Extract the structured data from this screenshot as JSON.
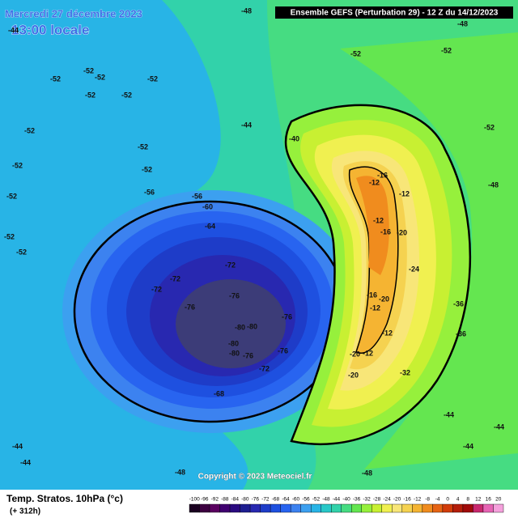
{
  "header": {
    "date": "Mercredi 27 décembre 2023",
    "time": "13:00 locale",
    "run": "Ensemble GEFS  (Perturbation 29)  -  12 Z du 14/12/2023"
  },
  "copyright": "Copyright © 2023 Meteociel.fr",
  "footer": {
    "title": "Temp. Stratos. 10hPa (°c)",
    "lead": "(+ 312h)"
  },
  "legend": {
    "ticks": [
      -100,
      -96,
      -92,
      -88,
      -84,
      -80,
      -76,
      -72,
      -68,
      -64,
      -60,
      -56,
      -52,
      -48,
      -44,
      -40,
      -36,
      -32,
      -28,
      -24,
      -20,
      -16,
      -12,
      -8,
      -4,
      0,
      4,
      8,
      12,
      16,
      20
    ],
    "colors": [
      "#1a0020",
      "#3c0040",
      "#5a0060",
      "#400070",
      "#2a0a80",
      "#1e1e90",
      "#2828b0",
      "#1e3cc8",
      "#1e50e0",
      "#2864f0",
      "#3c82f0",
      "#3ca0f0",
      "#28b4e6",
      "#28c8c8",
      "#32d2aa",
      "#46dc82",
      "#64e650",
      "#96f03c",
      "#c8f032",
      "#f0f050",
      "#f8e678",
      "#f5d250",
      "#f5b432",
      "#f08c1e",
      "#e66414",
      "#d23c0a",
      "#b41e0a",
      "#a00a0a",
      "#c8286e",
      "#e664b4",
      "#f5a0dc"
    ]
  },
  "map_labels": [
    -44,
    -52,
    -52,
    -52,
    -52,
    -52,
    -52,
    -52,
    -52,
    -52,
    -52,
    -52,
    -52,
    -52,
    -56,
    -56,
    -60,
    -64,
    -72,
    -72,
    -72,
    -76,
    -76,
    -76,
    -80,
    -80,
    -80,
    -80,
    -76,
    -72,
    -76,
    -68,
    -44,
    -40,
    -52,
    -52,
    -52,
    -48,
    -16,
    -12,
    -12,
    -12,
    -16,
    -20,
    -24,
    -36,
    -36,
    -16,
    -12,
    -20,
    -12,
    -12,
    -20,
    -20,
    -32,
    -44,
    -44,
    -44,
    -44,
    -44,
    -48,
    -48,
    -48,
    -48
  ]
}
